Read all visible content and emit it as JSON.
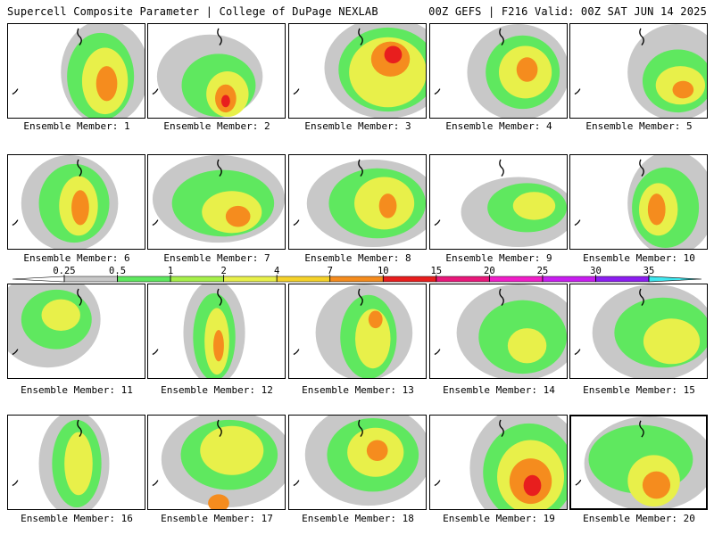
{
  "header": {
    "left": "Supercell Composite Parameter | College of DuPage NEXLAB",
    "right": "00Z GEFS | F216 Valid: 00Z SAT JUN 14 2025"
  },
  "colorbar": {
    "labels": [
      "0.25",
      "0.5",
      "1",
      "2",
      "4",
      "7",
      "10",
      "15",
      "20",
      "25",
      "30",
      "35"
    ],
    "colors": [
      "#c8c8c8",
      "#5fe85f",
      "#a6f04a",
      "#e8f04a",
      "#f5d22a",
      "#f58c1e",
      "#e81e1e",
      "#e8187a",
      "#f01ec8",
      "#c81ef0",
      "#8c1ef0",
      "#a070e0",
      "#40e8f0"
    ]
  },
  "members": [
    {
      "label": "Ensemble Member: 1"
    },
    {
      "label": "Ensemble Member: 2"
    },
    {
      "label": "Ensemble Member: 3"
    },
    {
      "label": "Ensemble Member: 4"
    },
    {
      "label": "Ensemble Member: 5"
    },
    {
      "label": "Ensemble Member: 6"
    },
    {
      "label": "Ensemble Member: 7"
    },
    {
      "label": "Ensemble Member: 8"
    },
    {
      "label": "Ensemble Member: 9"
    },
    {
      "label": "Ensemble Member: 10"
    },
    {
      "label": "Ensemble Member: 11"
    },
    {
      "label": "Ensemble Member: 12"
    },
    {
      "label": "Ensemble Member: 13"
    },
    {
      "label": "Ensemble Member: 14"
    },
    {
      "label": "Ensemble Member: 15"
    },
    {
      "label": "Ensemble Member: 16"
    },
    {
      "label": "Ensemble Member: 17"
    },
    {
      "label": "Ensemble Member: 18"
    },
    {
      "label": "Ensemble Member: 19"
    },
    {
      "label": "Ensemble Member: 20",
      "selected": true
    }
  ]
}
